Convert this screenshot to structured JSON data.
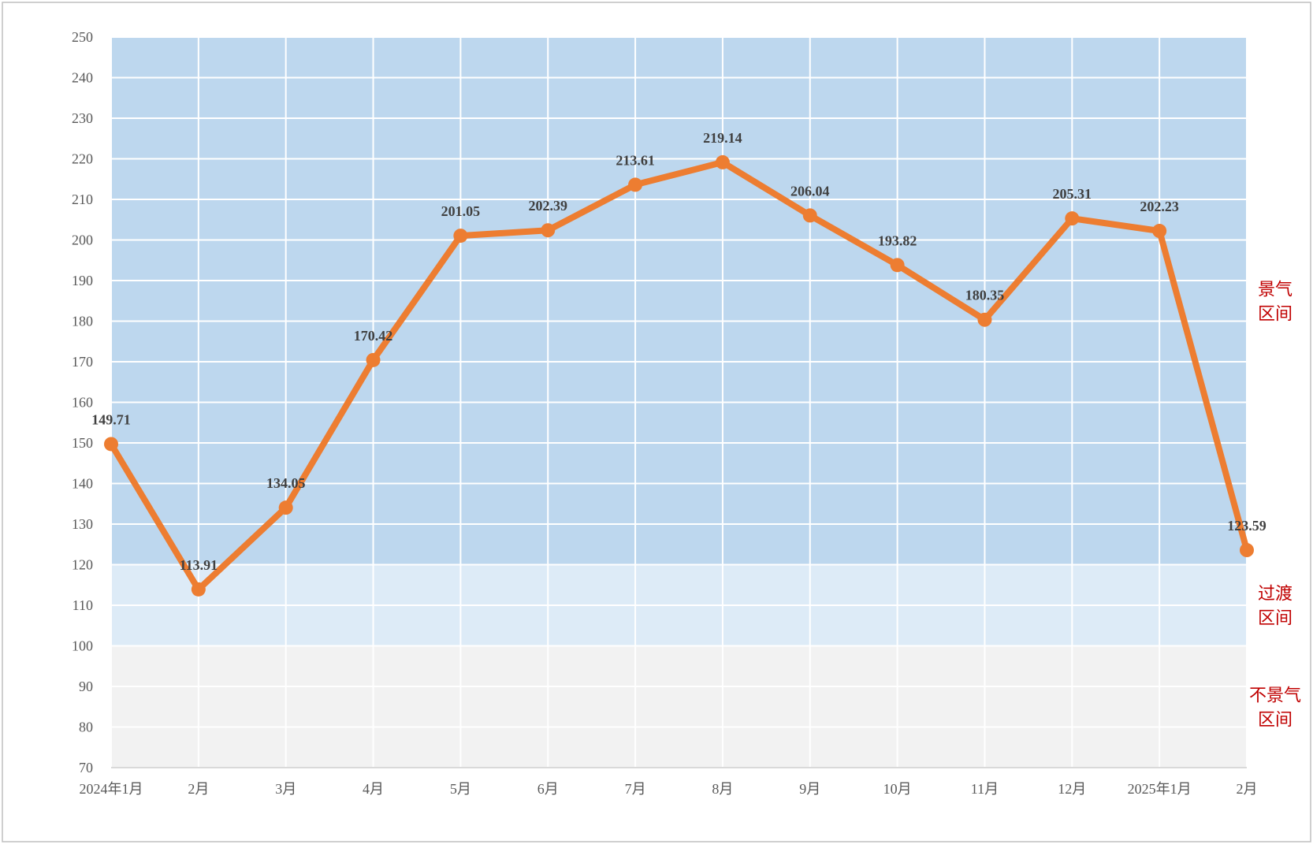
{
  "chart_data": {
    "type": "line",
    "categories": [
      "2024年1月",
      "2月",
      "3月",
      "4月",
      "5月",
      "6月",
      "7月",
      "8月",
      "9月",
      "10月",
      "11月",
      "12月",
      "2025年1月",
      "2月"
    ],
    "series": [
      {
        "values": [
          149.71,
          113.91,
          134.05,
          170.42,
          201.05,
          202.39,
          213.61,
          219.14,
          206.04,
          193.82,
          180.35,
          205.31,
          202.23,
          123.59
        ],
        "color": "#ed7d31"
      }
    ],
    "data_labels": [
      "149.71",
      "113.91",
      "134.05",
      "170.42",
      "201.05",
      "202.39",
      "213.61",
      "219.14",
      "206.04",
      "193.82",
      "180.35",
      "205.31",
      "202.23",
      "123.59"
    ],
    "y_ticks": [
      "70",
      "80",
      "90",
      "100",
      "110",
      "120",
      "130",
      "140",
      "150",
      "160",
      "170",
      "180",
      "190",
      "200",
      "210",
      "220",
      "230",
      "240",
      "250"
    ],
    "ylim": [
      70,
      250
    ],
    "grid": true,
    "bands": [
      {
        "from": 120,
        "to": 250,
        "color": "#bdd7ee",
        "label_lines": [
          "景气",
          "区间"
        ]
      },
      {
        "from": 100,
        "to": 120,
        "color": "#ddebf7",
        "label_lines": [
          "过渡",
          "区间"
        ]
      },
      {
        "from": 70,
        "to": 100,
        "color": "#f2f2f2",
        "label_lines": [
          "不景气",
          "区间"
        ]
      }
    ]
  }
}
